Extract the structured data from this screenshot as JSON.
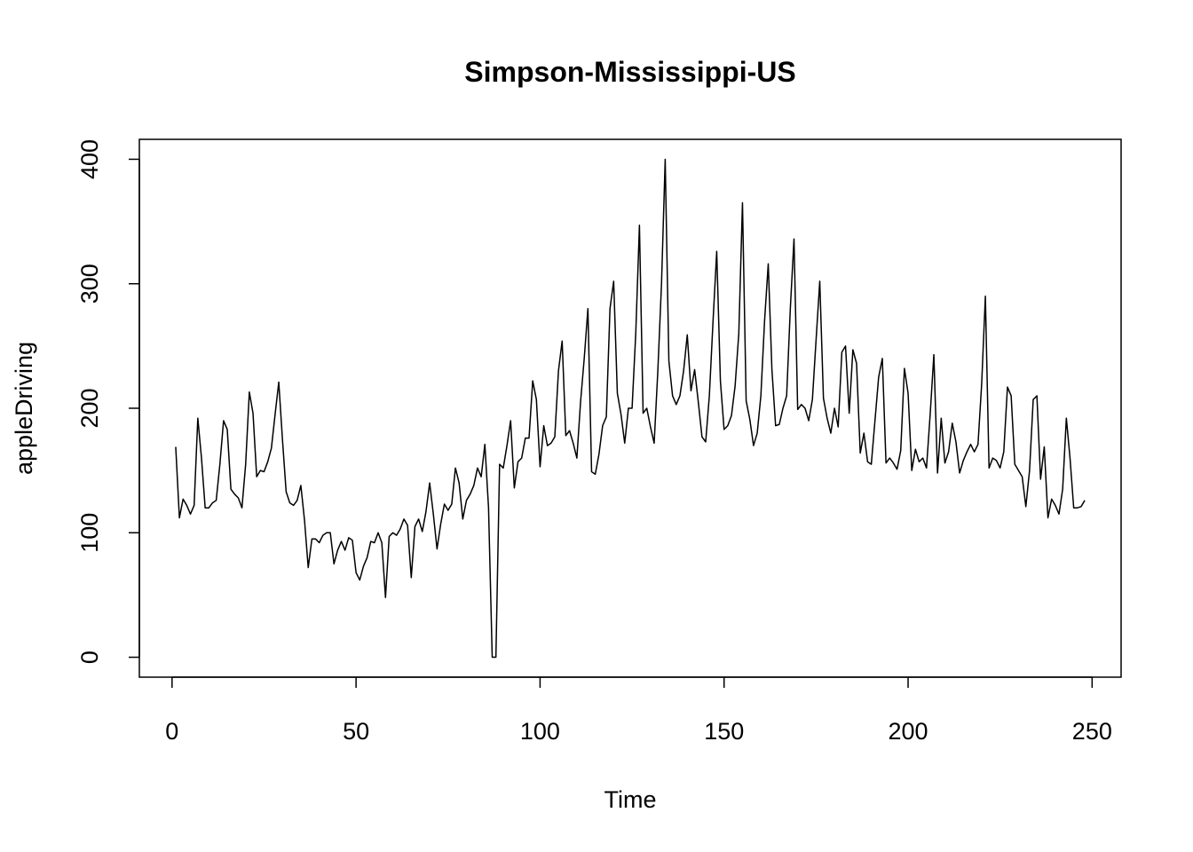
{
  "chart_data": {
    "type": "line",
    "title": "Simpson-Mississippi-US",
    "x_label": "Time",
    "y_label": "appleDriving",
    "x": [
      1,
      2,
      3,
      4,
      5,
      6,
      7,
      8,
      9,
      10,
      11,
      12,
      13,
      14,
      15,
      16,
      17,
      18,
      19,
      20,
      21,
      22,
      23,
      24,
      25,
      26,
      27,
      28,
      29,
      30,
      31,
      32,
      33,
      34,
      35,
      36,
      37,
      38,
      39,
      40,
      41,
      42,
      43,
      44,
      45,
      46,
      47,
      48,
      49,
      50,
      51,
      52,
      53,
      54,
      55,
      56,
      57,
      58,
      59,
      60,
      61,
      62,
      63,
      64,
      65,
      66,
      67,
      68,
      69,
      70,
      71,
      72,
      73,
      74,
      75,
      76,
      77,
      78,
      79,
      80,
      81,
      82,
      83,
      84,
      85,
      86,
      87,
      88,
      89,
      90,
      91,
      92,
      93,
      94,
      95,
      96,
      97,
      98,
      99,
      100,
      101,
      102,
      103,
      104,
      105,
      106,
      107,
      108,
      109,
      110,
      111,
      112,
      113,
      114,
      115,
      116,
      117,
      118,
      119,
      120,
      121,
      122,
      123,
      124,
      125,
      126,
      127,
      128,
      129,
      130,
      131,
      132,
      133,
      134,
      135,
      136,
      137,
      138,
      139,
      140,
      141,
      142,
      143,
      144,
      145,
      146,
      147,
      148,
      149,
      150,
      151,
      152,
      153,
      154,
      155,
      156,
      157,
      158,
      159,
      160,
      161,
      162,
      163,
      164,
      165,
      166,
      167,
      168,
      169,
      170,
      171,
      172,
      173,
      174,
      175,
      176,
      177,
      178,
      179,
      180,
      181,
      182,
      183,
      184,
      185,
      186,
      187,
      188,
      189,
      190,
      191,
      192,
      193,
      194,
      195,
      196,
      197,
      198,
      199,
      200,
      201,
      202,
      203,
      204,
      205,
      206,
      207,
      208,
      209,
      210,
      211,
      212,
      213,
      214,
      215,
      216,
      217,
      218,
      219,
      220,
      221,
      222,
      223,
      224,
      225,
      226,
      227,
      228,
      229,
      230,
      231,
      232,
      233,
      234,
      235,
      236,
      237,
      238,
      239,
      240,
      241,
      242,
      243,
      244,
      245,
      246,
      247,
      248
    ],
    "values": [
      169,
      112,
      127,
      122,
      115,
      122,
      192,
      160,
      120,
      120,
      124,
      126,
      155,
      190,
      183,
      135,
      131,
      128,
      120,
      155,
      213,
      196,
      145,
      150,
      149,
      157,
      168,
      195,
      221,
      175,
      133,
      124,
      122,
      126,
      138,
      110,
      72,
      95,
      95,
      92,
      98,
      100,
      100,
      75,
      86,
      93,
      86,
      96,
      94,
      68,
      62,
      73,
      80,
      93,
      92,
      100,
      92,
      48,
      97,
      100,
      98,
      103,
      111,
      106,
      64,
      105,
      111,
      101,
      117,
      140,
      115,
      87,
      107,
      123,
      118,
      123,
      152,
      140,
      111,
      126,
      131,
      138,
      152,
      145,
      171,
      120,
      0,
      0,
      155,
      152,
      170,
      190,
      136,
      157,
      160,
      176,
      176,
      222,
      207,
      153,
      186,
      170,
      172,
      177,
      230,
      254,
      178,
      182,
      172,
      160,
      205,
      240,
      280,
      149,
      147,
      163,
      186,
      193,
      280,
      302,
      212,
      195,
      172,
      200,
      200,
      260,
      347,
      196,
      200,
      185,
      172,
      230,
      300,
      400,
      238,
      210,
      203,
      210,
      230,
      259,
      214,
      231,
      205,
      177,
      173,
      210,
      270,
      326,
      222,
      183,
      186,
      194,
      218,
      260,
      365,
      206,
      191,
      170,
      180,
      210,
      270,
      316,
      231,
      186,
      187,
      200,
      210,
      280,
      336,
      199,
      203,
      200,
      190,
      207,
      255,
      302,
      208,
      192,
      180,
      200,
      185,
      245,
      250,
      196,
      247,
      236,
      164,
      180,
      157,
      155,
      190,
      225,
      240,
      156,
      160,
      156,
      151,
      166,
      232,
      212,
      150,
      167,
      157,
      160,
      152,
      195,
      243,
      148,
      192,
      156,
      165,
      188,
      173,
      148,
      158,
      165,
      171,
      165,
      171,
      220,
      290,
      152,
      160,
      158,
      152,
      165,
      217,
      210,
      155,
      150,
      145,
      121,
      150,
      207,
      210,
      143,
      169,
      112,
      127,
      122,
      115,
      135,
      192,
      160,
      120,
      120,
      121,
      126
    ],
    "color": "#000000",
    "xlim": [
      -8.88,
      257.88
    ],
    "xticks": [
      0,
      50,
      100,
      150,
      200,
      250
    ],
    "ylim": [
      -16,
      416
    ],
    "yticks": [
      0,
      100,
      200,
      300,
      400
    ]
  }
}
